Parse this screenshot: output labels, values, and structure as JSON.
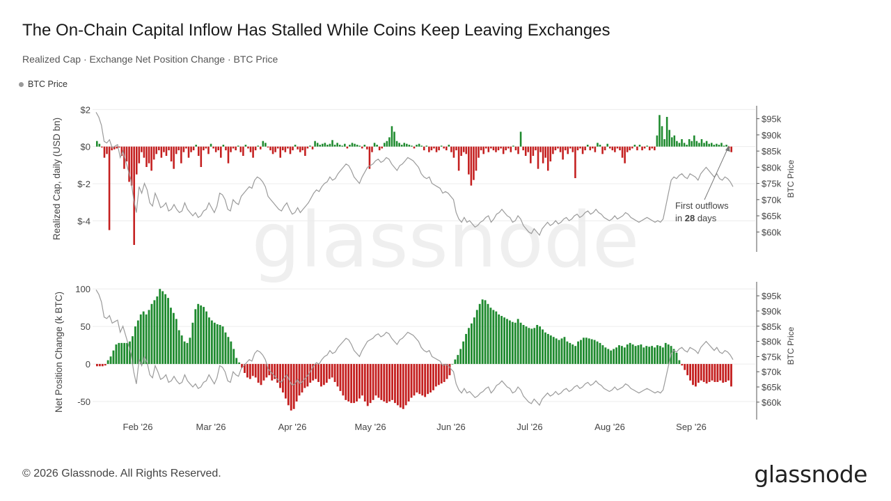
{
  "header": {
    "title": "The On-Chain Capital Inflow Has Stalled While Coins Keep Leaving Exchanges",
    "subtitle": "Realized Cap · Exchange Net Position Change · BTC Price"
  },
  "legend": {
    "label": "BTC Price",
    "color": "#9a9a9a"
  },
  "footer": {
    "copyright": "© 2026 Glassnode. All Rights Reserved.",
    "brand": "glassnode"
  },
  "watermark": "glassnode",
  "colors": {
    "positive": "#1e8a2e",
    "negative": "#c41f1f",
    "price": "#9a9a9a",
    "grid": "#ececec"
  },
  "chart_data": [
    {
      "type": "bar",
      "name": "Realized Cap",
      "ylabel": "Realized Cap, daily (USD bn)",
      "y2label": "BTC Price",
      "ylim": [
        -5.3,
        2.2
      ],
      "yticks": [
        2,
        0,
        -2,
        -4
      ],
      "ytick_labels": [
        "$2",
        "$0",
        "$-2",
        "$-4"
      ],
      "y2ticks": [
        95000,
        90000,
        85000,
        80000,
        75000,
        70000,
        65000,
        60000
      ],
      "y2tick_labels": [
        "$95k",
        "$90k",
        "$85k",
        "$80k",
        "$75k",
        "$70k",
        "$65k",
        "$60k"
      ],
      "annotation": {
        "line1": "First outflows",
        "line2_prefix": "in ",
        "line2_bold": "28",
        "line2_suffix": " days"
      },
      "values": [
        0.3,
        0.15,
        -0.05,
        -0.6,
        -0.4,
        -4.5,
        -0.2,
        -0.15,
        -0.1,
        -0.05,
        -0.5,
        -1.2,
        -0.8,
        -1.9,
        -2.1,
        -5.3,
        -1.5,
        -0.9,
        -0.3,
        -0.6,
        -1.1,
        -0.9,
        -1.3,
        -0.7,
        -0.4,
        -0.2,
        -0.6,
        -0.3,
        -0.5,
        -0.2,
        -0.8,
        -1.2,
        -0.4,
        -0.2,
        -0.9,
        -0.3,
        -0.1,
        -0.6,
        -0.3,
        -0.2,
        0.1,
        -0.5,
        -1.1,
        -0.2,
        -0.1,
        -0.4,
        0.15,
        -0.1,
        -0.3,
        -0.2,
        -0.6,
        0.1,
        -0.2,
        -0.9,
        -0.3,
        -0.1,
        -0.2,
        0.05,
        -0.3,
        -0.5,
        0.1,
        -0.1,
        -0.3,
        -0.6,
        -0.2,
        0.05,
        -0.15,
        0.3,
        0.2,
        -0.05,
        -0.2,
        -0.4,
        -0.3,
        -0.1,
        -0.6,
        -0.2,
        -0.3,
        -0.1,
        -0.4,
        -0.2,
        0.1,
        -0.15,
        -0.3,
        -0.2,
        -0.5,
        -0.1,
        0.05,
        -0.15,
        0.3,
        0.2,
        0.1,
        0.15,
        0.2,
        0.1,
        0.15,
        0.35,
        0.1,
        0.2,
        0.1,
        0.05,
        0.15,
        -0.1,
        0.1,
        0.2,
        0.15,
        0.1,
        0.05,
        -0.1,
        0.1,
        -0.15,
        -1.2,
        -0.3,
        0.2,
        0.1,
        -0.2,
        -0.1,
        0.2,
        0.3,
        0.5,
        1.1,
        0.8,
        0.3,
        0.2,
        0.1,
        0.2,
        0.15,
        0.1,
        0.05,
        -0.1,
        0.1,
        0.15,
        0.05,
        -0.2,
        0.05,
        -0.3,
        -0.2,
        -0.1,
        -0.3,
        -0.2,
        0.05,
        -0.1,
        -0.2,
        0.1,
        -0.3,
        -0.6,
        -0.2,
        -1.3,
        -0.5,
        -0.3,
        -0.4,
        -1.5,
        -2.1,
        -1.8,
        -1.3,
        -0.6,
        -0.2,
        -0.4,
        -0.1,
        -0.3,
        -0.1,
        -0.2,
        -0.3,
        -0.2,
        -0.1,
        -0.4,
        -0.2,
        -0.1,
        -0.3,
        0.05,
        -0.2,
        -0.4,
        0.8,
        -0.2,
        -0.5,
        -0.3,
        -0.9,
        -0.5,
        -0.2,
        -1.2,
        -0.3,
        -0.9,
        -0.6,
        -1.3,
        -0.8,
        -0.4,
        -0.2,
        -0.1,
        -0.3,
        -0.7,
        -0.2,
        -0.4,
        -0.1,
        -0.3,
        -1.7,
        -0.2,
        -0.1,
        -0.4,
        -0.2,
        0.1,
        -0.2,
        -0.1,
        -0.3,
        0.2,
        0.1,
        -0.4,
        -0.2,
        0.15,
        -0.1,
        -0.2,
        -0.3,
        -0.1,
        -0.2,
        -0.6,
        -0.9,
        -0.3,
        -0.2,
        -0.1,
        0.1,
        -0.2,
        0.1,
        -0.2,
        -0.1,
        0.05,
        -0.2,
        -0.1,
        -0.2,
        0.6,
        1.7,
        1.1,
        0.4,
        1.6,
        0.9,
        0.5,
        0.6,
        0.3,
        0.2,
        0.4,
        0.2,
        0.1,
        0.4,
        0.3,
        0.6,
        0.3,
        0.2,
        0.4,
        0.2,
        0.3,
        0.15,
        0.2,
        0.1,
        0.15,
        0.1,
        0.2,
        0.05,
        0.1,
        -0.1,
        -0.3
      ]
    },
    {
      "type": "bar",
      "name": "Exchange Net Position Change",
      "ylabel": "Net Position Change (k BTC)",
      "y2label": "BTC Price",
      "ylim": [
        -63,
        103
      ],
      "yticks": [
        100,
        50,
        0,
        -50
      ],
      "ytick_labels": [
        "100",
        "50",
        "0",
        "-50"
      ],
      "y2ticks": [
        95000,
        90000,
        85000,
        80000,
        75000,
        70000,
        65000,
        60000
      ],
      "y2tick_labels": [
        "$95k",
        "$90k",
        "$85k",
        "$80k",
        "$75k",
        "$70k",
        "$65k",
        "$60k"
      ],
      "x_labels": [
        "Feb '26",
        "Mar '26",
        "Apr '26",
        "May '26",
        "Jun '26",
        "Jul '26",
        "Aug '26",
        "Sep '26"
      ],
      "values": [
        -3,
        -3,
        -3,
        -2,
        5,
        10,
        18,
        26,
        28,
        28,
        28,
        28,
        30,
        37,
        50,
        58,
        66,
        70,
        66,
        72,
        80,
        85,
        90,
        100,
        97,
        93,
        88,
        75,
        68,
        60,
        45,
        38,
        30,
        28,
        35,
        55,
        73,
        80,
        78,
        76,
        70,
        62,
        58,
        55,
        53,
        52,
        50,
        42,
        36,
        30,
        20,
        8,
        2,
        -5,
        -12,
        -18,
        -20,
        -16,
        -18,
        -25,
        -28,
        -22,
        -18,
        -15,
        -22,
        -20,
        -25,
        -32,
        -38,
        -46,
        -55,
        -62,
        -60,
        -50,
        -42,
        -38,
        -32,
        -30,
        -25,
        -22,
        -20,
        -24,
        -30,
        -28,
        -25,
        -20,
        -18,
        -24,
        -30,
        -36,
        -42,
        -48,
        -50,
        -52,
        -52,
        -50,
        -46,
        -42,
        -50,
        -56,
        -52,
        -48,
        -42,
        -45,
        -48,
        -50,
        -52,
        -50,
        -48,
        -52,
        -55,
        -58,
        -60,
        -55,
        -50,
        -45,
        -42,
        -38,
        -40,
        -42,
        -44,
        -40,
        -38,
        -35,
        -30,
        -28,
        -26,
        -24,
        -20,
        -15,
        0,
        6,
        12,
        20,
        30,
        40,
        48,
        54,
        62,
        72,
        80,
        86,
        85,
        80,
        75,
        72,
        70,
        66,
        64,
        62,
        60,
        58,
        56,
        55,
        60,
        55,
        52,
        50,
        48,
        47,
        48,
        52,
        50,
        46,
        42,
        40,
        38,
        36,
        34,
        32,
        34,
        36,
        30,
        28,
        26,
        24,
        30,
        32,
        35,
        35,
        34,
        33,
        32,
        30,
        28,
        25,
        22,
        20,
        18,
        20,
        22,
        25,
        24,
        22,
        26,
        28,
        26,
        24,
        25,
        26,
        22,
        24,
        23,
        24,
        22,
        25,
        24,
        22,
        28,
        26,
        24,
        20,
        15,
        5,
        -2,
        -8,
        -15,
        -22,
        -28,
        -30,
        -25,
        -22,
        -24,
        -26,
        -24,
        -22,
        -24,
        -24,
        -22,
        -25,
        -24,
        -22,
        -30
      ]
    }
  ],
  "price_series": {
    "name": "BTC Price",
    "values": [
      97000,
      95500,
      93000,
      88000,
      87500,
      88500,
      86000,
      86500,
      87000,
      83000,
      85000,
      82000,
      79000,
      76000,
      70000,
      66000,
      74000,
      72000,
      75000,
      73000,
      69000,
      68000,
      72000,
      70000,
      67500,
      68000,
      69000,
      66500,
      67000,
      68500,
      67000,
      66000,
      66500,
      69000,
      67000,
      66000,
      65000,
      66000,
      64500,
      65000,
      66500,
      67000,
      69000,
      67500,
      66000,
      68000,
      72000,
      71500,
      70000,
      67000,
      66500,
      70000,
      69000,
      68500,
      71000,
      72000,
      73000,
      74000,
      73500,
      76000,
      77000,
      76500,
      75500,
      74000,
      71000,
      70000,
      69000,
      68000,
      67000,
      66500,
      68000,
      69000,
      67000,
      65500,
      66000,
      67500,
      66000,
      67000,
      68000,
      69000,
      70500,
      72000,
      73000,
      72500,
      74000,
      75000,
      75500,
      77000,
      76000,
      76500,
      78000,
      79000,
      80000,
      81000,
      80500,
      79000,
      77000,
      76000,
      75000,
      77000,
      78500,
      80000,
      80500,
      81000,
      82000,
      82500,
      81500,
      82000,
      83000,
      82500,
      81000,
      80000,
      79000,
      80500,
      81000,
      82000,
      83000,
      82500,
      82000,
      81000,
      80000,
      78000,
      77000,
      76500,
      77000,
      75000,
      74500,
      74000,
      73500,
      72000,
      72500,
      72000,
      71000,
      70000,
      66000,
      64000,
      63000,
      64500,
      63000,
      63500,
      62500,
      61500,
      62000,
      63000,
      63500,
      64500,
      65000,
      63000,
      64000,
      65500,
      66000,
      67000,
      66000,
      65000,
      64500,
      63000,
      63500,
      65000,
      64000,
      62000,
      61000,
      60000,
      59500,
      61000,
      60000,
      59000,
      61000,
      62000,
      63000,
      62000,
      62500,
      63500,
      62500,
      63000,
      64000,
      64500,
      63500,
      64000,
      65000,
      65500,
      64500,
      65000,
      66000,
      66500,
      65500,
      66000,
      67000,
      66000,
      65500,
      64500,
      64000,
      63500,
      64000,
      65000,
      64000,
      64500,
      65000,
      66000,
      65500,
      64500,
      64000,
      63500,
      63000,
      63500,
      64000,
      64500,
      64000,
      63500,
      63000,
      63500,
      63000,
      64000,
      68000,
      72000,
      76000,
      77000,
      76500,
      77500,
      78000,
      77000,
      76500,
      78000,
      77500,
      77000,
      76000,
      78000,
      79000,
      80000,
      79000,
      78000,
      77000,
      78000,
      76500,
      76000,
      77000,
      76500,
      75500,
      74000
    ]
  }
}
